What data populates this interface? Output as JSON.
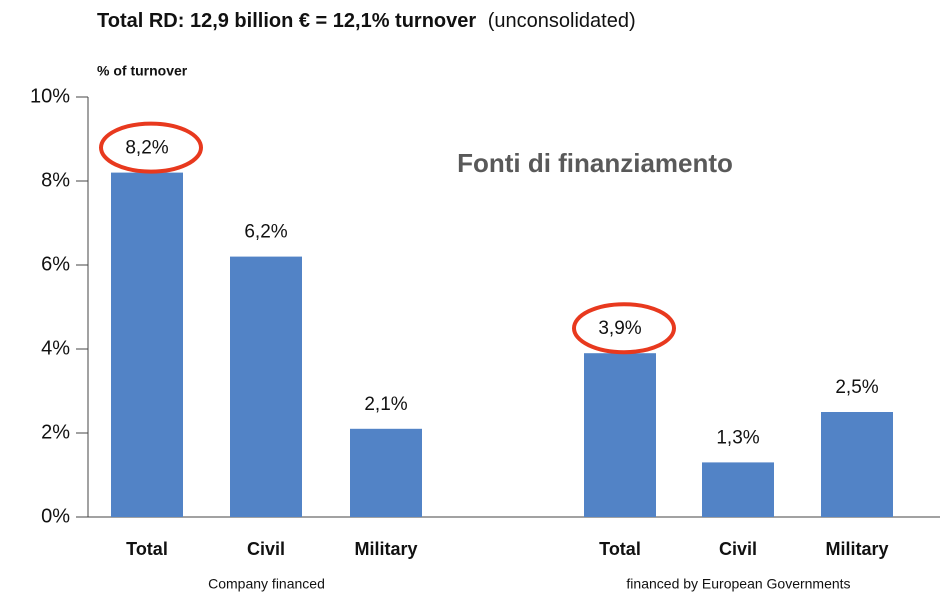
{
  "chart_data": {
    "type": "bar",
    "title": "Total RD: 12,9 billion € = 12,1% turnover",
    "title_note": "(unconsolidated)",
    "y_axis_label": "% of turnover",
    "annotation": "Fonti di finanziamento",
    "categories": [
      "Total",
      "Civil",
      "Military",
      "Total",
      "Civil",
      "Military"
    ],
    "groups": [
      {
        "label": "Company financed",
        "members": [
          0,
          1,
          2
        ]
      },
      {
        "label": "financed by European Governments",
        "members": [
          3,
          4,
          5
        ]
      }
    ],
    "values": [
      8.2,
      6.2,
      2.1,
      3.9,
      1.3,
      2.5
    ],
    "value_labels": [
      "8,2%",
      "6,2%",
      "2,1%",
      "3,9%",
      "1,3%",
      "2,5%"
    ],
    "highlighted": [
      0,
      3
    ],
    "color": "#5283c6",
    "highlight_color": "#e8391e",
    "ylim": [
      0,
      10
    ],
    "yticks": [
      {
        "value": 0,
        "label": "0%"
      },
      {
        "value": 2,
        "label": "2%"
      },
      {
        "value": 4,
        "label": "4%"
      },
      {
        "value": 6,
        "label": "6%"
      },
      {
        "value": 8,
        "label": "8%"
      },
      {
        "value": 10,
        "label": "10%"
      }
    ],
    "grid": false
  }
}
